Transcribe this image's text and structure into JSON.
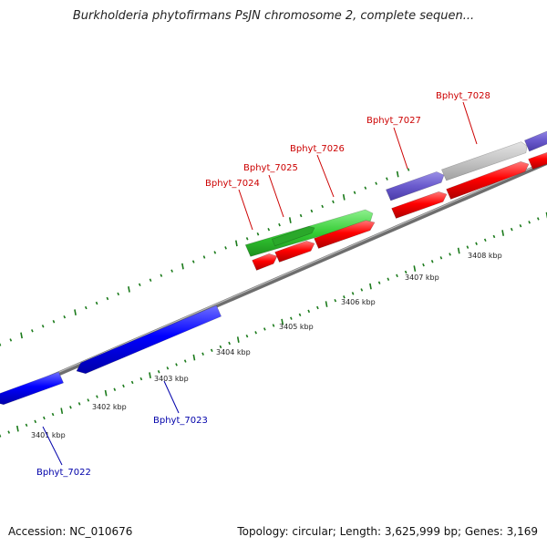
{
  "title": "Burkholderia phytofirmans PsJN chromosome 2, complete sequen...",
  "accession_text": "Accession: NC_010676",
  "summary_text": "Topology: circular; Length: 3,625,999 bp; Genes: 3,169",
  "colors": {
    "backbone": "#808080",
    "tick": "#1a6b1a",
    "forward_gene": "#ff0000",
    "reverse_gene": "#0000ff",
    "forward_label": "#cc0000",
    "reverse_label": "#0000aa",
    "orf_green": "#33cc33",
    "orf_purple": "#6a5acd",
    "orf_gray": "#c0c0c0"
  },
  "kbp_labels": [
    "3401 kbp",
    "3402 kbp",
    "3403 kbp",
    "3404 kbp",
    "3405 kbp",
    "3406 kbp",
    "3407 kbp",
    "3408 kbp"
  ],
  "genes": [
    {
      "label": "Bphyt_7022",
      "strand": "reverse"
    },
    {
      "label": "Bphyt_7023",
      "strand": "reverse"
    },
    {
      "label": "Bphyt_7024",
      "strand": "forward"
    },
    {
      "label": "Bphyt_7025",
      "strand": "forward"
    },
    {
      "label": "Bphyt_7026",
      "strand": "forward"
    },
    {
      "label": "Bphyt_7027",
      "strand": "forward"
    },
    {
      "label": "Bphyt_7028",
      "strand": "forward"
    }
  ]
}
